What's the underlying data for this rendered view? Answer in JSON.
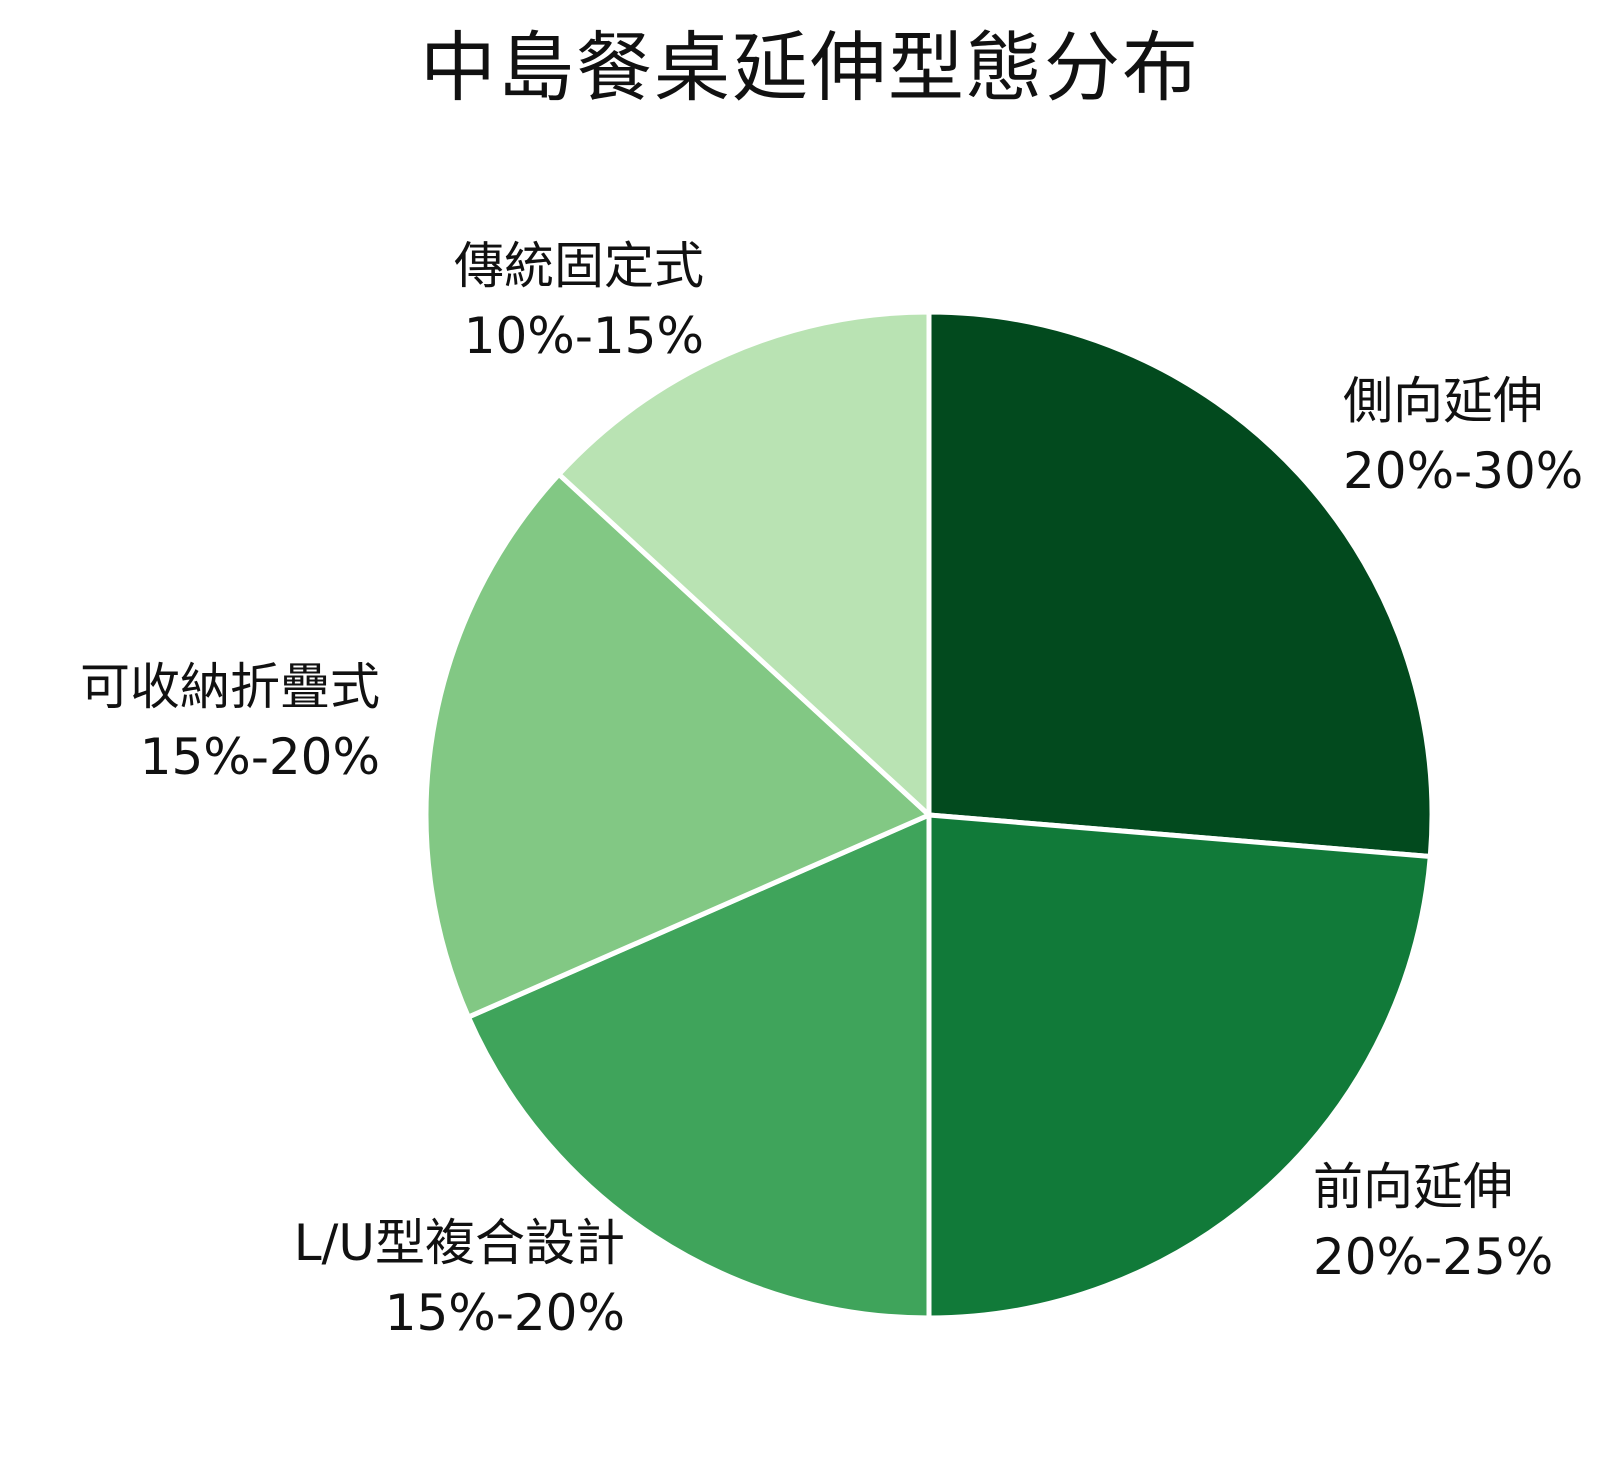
{
  "chart_data": {
    "type": "pie",
    "title": "中島餐桌延伸型態分布",
    "start_angle_deg": 0,
    "direction": "clockwise",
    "slices": [
      {
        "label": "側向延伸",
        "range_text": "20%-30%",
        "value": 25,
        "color": "#024a1e"
      },
      {
        "label": "前向延伸",
        "range_text": "20%-25%",
        "value": 22.5,
        "color": "#117a39"
      },
      {
        "label": "L/U型複合設計",
        "range_text": "15%-20%",
        "value": 17.5,
        "color": "#3fa45b"
      },
      {
        "label": "可收納折疊式",
        "range_text": "15%-20%",
        "value": 17.5,
        "color": "#82c884"
      },
      {
        "label": "傳統固定式",
        "range_text": "10%-15%",
        "value": 12.5,
        "color": "#b9e3b3"
      }
    ]
  }
}
